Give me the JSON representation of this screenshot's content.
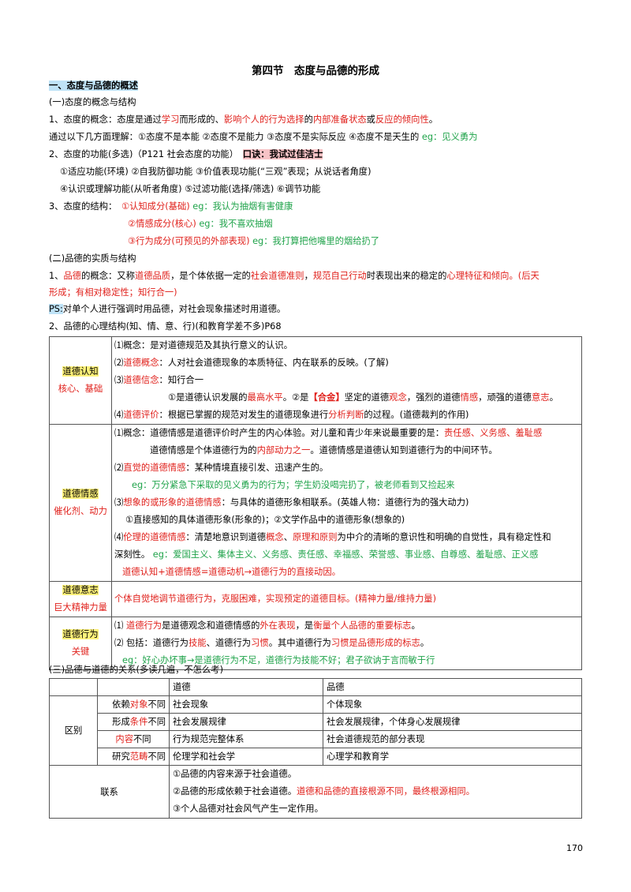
{
  "title": "第四节　态度与品德的形成",
  "sec1": "一、态度与品德的概述",
  "sub1": "(一)态度的概念与结构",
  "l1": {
    "a": "1、态度的概念：态度是通过",
    "b": "学习",
    "c": "而形成的、",
    "d": "影响个人的行为选择",
    "e": "的",
    "f": "内部准备状态",
    "g": "或",
    "h": "反应的倾向性",
    "i": "。"
  },
  "l2": {
    "a": "通过以下几方面理解：①态度不是本能 ②态度不是能力 ③态度不是实际反应 ④态度不是天生的 ",
    "b": "eg：见义勇为"
  },
  "l3": {
    "a": "2、态度的功能(多选)（P121 社会态度的功能）",
    "b": "口诀：我试过佳洁士"
  },
  "l4": "①适应功能(环境) ②自我防御功能 ③价值表现功能(“三观”表现；从说话者角度)",
  "l5": "④认识或理解功能(从听者角度) ⑤过滤功能(选择/筛选) ⑥调节功能",
  "l6": {
    "a": "3、态度的结构：",
    "b": "①认知成分(基础)",
    "c": " eg：我认为抽烟有害健康"
  },
  "l7": {
    "b": "②情感成分(核心)",
    "c": " eg：我不喜欢抽烟"
  },
  "l8": {
    "b": "③行为成分(可预见的外部表现)",
    "c": " eg：我打算把他嘴里的烟给扔了"
  },
  "sub2": "(二)品德的实质与结构",
  "l9": {
    "a": "1、",
    "b": "品德",
    "c": "的概念：又称",
    "d": "道德品质",
    "e": "，是个体依据一定的",
    "f": "社会道德准则",
    "g": "，",
    "h": "规范自己行动",
    "i": "时表现出来的稳定的",
    "j": "心理特征和倾向",
    "k": "。(后天"
  },
  "l10": "形成；有相对稳定性；知行合一)",
  "l11": {
    "a": "PS:",
    "b": "对单个人进行强调时用品德，对社会现象描述时用道德。"
  },
  "l12": "2、品德的心理结构(知、情、意、行)(和教育学差不多)P68",
  "t1": {
    "c1": {
      "name": "道德认知",
      "sub": "核心、基础",
      "r1": "⑴概念：是对道德规范及其执行意义的认识。",
      "r2a": "⑵",
      "r2b": "道德概念",
      "r2c": "：人对社会道德现象的本质特征、内在联系的反映。(了解)",
      "r3a": "⑶",
      "r3b": "道德信念",
      "r3c": "：知行合一",
      "r4a": "①是道德认识发展的",
      "r4b": "最高水平",
      "r4c": "。②是",
      "r4d": "【合金】",
      "r4e": "坚定的道德",
      "r4f": "观念",
      "r4g": "，强烈的道德",
      "r4h": "情感",
      "r4i": "，顽强的道德",
      "r4j": "意志",
      "r4k": "。",
      "r5a": "⑷",
      "r5b": "道德评价",
      "r5c": "：根据已掌握的规范对发生的道德现象进行",
      "r5d": "分析判断",
      "r5e": "的过程。(道德裁判的作用)"
    },
    "c2": {
      "name": "道德情感",
      "sub": "催化剂、动力",
      "r1a": "⑴概念：道德情感是道德评价时产生的内心体验。对儿童和青少年来说最重要的是：",
      "r1b": "责任感、义务感、羞耻感",
      "r2a": "道德情感是个体道德行为的",
      "r2b": "内部动力之一",
      "r2c": "。道德情感是道德认知到道德行为的中间环节。",
      "r3a": "⑵",
      "r3b": "直觉的道德情感",
      "r3c": "：某种情境直接引发、迅速产生的。",
      "r4": "eg：万分紧急下采取的见义勇为的行为；学生奶没喝完扔了，被老师看到又捡起来",
      "r5a": "⑶",
      "r5b": "想象的或形象的道德情感",
      "r5c": "：与具体的道德形象相联系。(英雄人物：道德行为的强大动力)",
      "r6": "①直接感知的具体道德形象(形象的)；②文学作品中的道德形象(想象的)",
      "r7a": "⑷",
      "r7b": "伦理的道德情感",
      "r7c": "：清楚地意识到道德",
      "r7d": "概念",
      "r7e": "、",
      "r7f": "原理和原则",
      "r7g": "为中介的清晰的意识性和明确的自觉性，具有稳定性和",
      "r8a": "深刻性。 ",
      "r8b": "eg：爱国主义、集体主义、义务感、责任感、幸福感、荣誉感、事业感、自尊感、羞耻感、正义感",
      "r9": "道德认知+道德情感=道德动机→道德行为的直接动因。"
    },
    "c3": {
      "name": "道德意志",
      "sub": "巨大精神力量",
      "r1": "个体自觉地调节道德行为，克服困难，实现预定的道德目标。(精神力量/维持力量)"
    },
    "c4": {
      "name": "道德行为",
      "sub": "关键",
      "r1a": "⑴ ",
      "r1b": "道德行为",
      "r1c": "是道德观念和道德情感的",
      "r1d": "外在表现",
      "r1e": "，是",
      "r1f": "衡量个人品德的重要标志",
      "r1g": "。",
      "r2a": "⑵ 包括：道德行为",
      "r2b": "技能",
      "r2c": "、道德行为",
      "r2d": "习惯",
      "r2e": "。其中道德行为",
      "r2f": "习惯是品德形成的标志",
      "r2g": "。",
      "r3": "eg：好心办坏事→是道德行为不足，道德行为技能不好；君子欲讷于言而敏于行"
    }
  },
  "sub3": "(三)品德与道德的关系(多读几遍，不怎么考)",
  "t2": {
    "h1": "道德",
    "h2": "品德",
    "diff": "区别",
    "rows": [
      {
        "a": "依赖",
        "b": "对象",
        "c": "不同",
        "d": "社会现象",
        "e": "个体现象"
      },
      {
        "a": "形成",
        "b": "条件",
        "c": "不同",
        "d": "社会发展规律",
        "e": "社会发展规律，个体身心发展规律"
      },
      {
        "a": "",
        "b": "内容",
        "c": "不同",
        "d": "行为规范完整体系",
        "e": "社会道德规范的部分表现"
      },
      {
        "a": "研究",
        "b": "范畴",
        "c": "不同",
        "d": "伦理学和社会学",
        "e": "心理学和教育学"
      }
    ],
    "link": "联系",
    "l1": "①品德的内容来源于社会道德。",
    "l2a": "②品德的形成依赖于社会道德。",
    "l2b": "道德和品德的直接根源不同，最终根源相同。",
    "l3": "③个人品德对社会风气产生一定作用。"
  },
  "page_no": "170"
}
